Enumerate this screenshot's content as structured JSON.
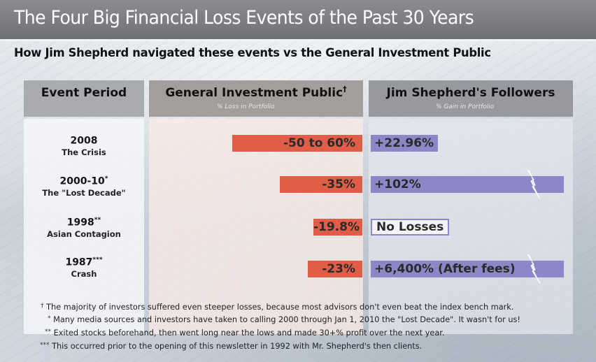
{
  "header": {
    "title": "The Four Big Financial Loss Events of the Past 30 Years",
    "subtitle": "How Jim Shepherd navigated these events vs the General Investment Public"
  },
  "columns": {
    "event": {
      "label": "Event Period"
    },
    "public": {
      "label": "General Investment Public",
      "marker": "†",
      "sublabel": "% Loss in Portfolio"
    },
    "jim": {
      "label": "Jim Shepherd's Followers",
      "sublabel": "% Gain in Portfolio"
    }
  },
  "colors": {
    "loss": "#e05e48",
    "gain": "#8c87c7",
    "title_bar": "#7b7d81"
  },
  "chart_data": {
    "type": "bar",
    "title": "The Four Big Financial Loss Events of the Past 30 Years",
    "subtitle": "How Jim Shepherd navigated these events vs the General Investment Public",
    "categories": [
      "2008 The Crisis",
      "2000-10* The \"Lost Decade\"",
      "1998** Asian Contagion",
      "1987*** Crash"
    ],
    "series": [
      {
        "name": "General Investment Public (% Loss in Portfolio)",
        "values": [
          -55,
          -35,
          -19.8,
          -23
        ],
        "labels": [
          "-50 to 60%",
          "-35%",
          "-19.8%",
          "-23%"
        ]
      },
      {
        "name": "Jim Shepherd's Followers (% Gain in Portfolio)",
        "values": [
          22.96,
          102,
          0,
          6400
        ],
        "labels": [
          "+22.96%",
          "+102%",
          "No Losses",
          "+6,400% (After fees)"
        ],
        "axis_break": [
          false,
          true,
          false,
          true
        ]
      }
    ],
    "xlabel": "",
    "ylabel": "",
    "legend": "column headers"
  },
  "rows": [
    {
      "year": "2008",
      "mark": "",
      "name": "The Crisis",
      "loss": "-50 to 60%",
      "loss_pct": 55,
      "gain": "+22.96%",
      "gain_kind": "bar",
      "gain_pct": 22.96,
      "broken": false
    },
    {
      "year": "2000-10",
      "mark": "*",
      "name": "The \"Lost Decade\"",
      "loss": "-35%",
      "loss_pct": 35,
      "gain": "+102%",
      "gain_kind": "bar",
      "gain_pct": 102,
      "broken": true
    },
    {
      "year": "1998",
      "mark": "**",
      "name": "Asian Contagion",
      "loss": "-19.8%",
      "loss_pct": 19.8,
      "gain": "No Losses",
      "gain_kind": "none",
      "gain_pct": 0,
      "broken": false
    },
    {
      "year": "1987",
      "mark": "***",
      "name": "Crash",
      "loss": "-23%",
      "loss_pct": 23,
      "gain": "+6,400% (After fees)",
      "gain_kind": "bar",
      "gain_pct": 6400,
      "broken": true
    }
  ],
  "footnotes": [
    {
      "mark": "†",
      "text": "The majority of investors suffered even steeper losses, because most advisors don't even beat the index bench mark."
    },
    {
      "mark": "*",
      "text": "Many media sources and investors have taken to calling 2000 through Jan 1, 2010 the \"Lost Decade\". It wasn't for us!"
    },
    {
      "mark": "**",
      "text": "Exited stocks beforehand, then went long near the lows and made 30+% profit over the next year."
    },
    {
      "mark": "***",
      "text": "This occurred prior to the opening of this newsletter in 1992 with Mr. Shepherd's then clients."
    }
  ]
}
